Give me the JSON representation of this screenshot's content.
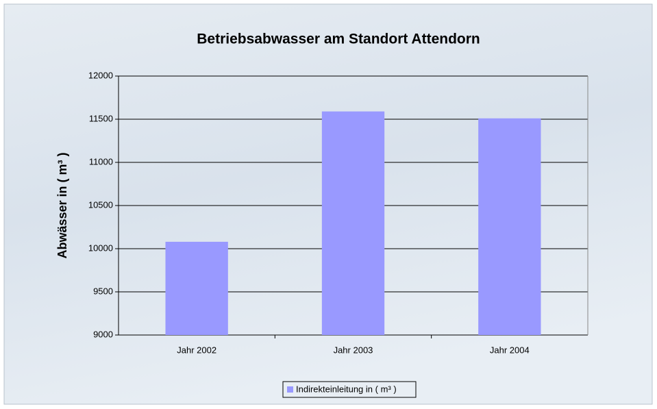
{
  "chart_data": {
    "type": "bar",
    "title": "Betriebsabwasser am Standort Attendorn",
    "y_label": "Abwässer in ( m³ )",
    "categories": [
      "Jahr 2002",
      "Jahr 2003",
      "Jahr 2004"
    ],
    "series": [
      {
        "name": "Indirekteinleitung in ( m³ )",
        "color": "#9999ff",
        "values": [
          10080,
          11590,
          11510
        ]
      }
    ],
    "ylim": [
      9000,
      12000
    ],
    "yticks": [
      9000,
      9500,
      10000,
      10500,
      11000,
      11500,
      12000
    ],
    "grid": true,
    "legend": "bottom"
  }
}
